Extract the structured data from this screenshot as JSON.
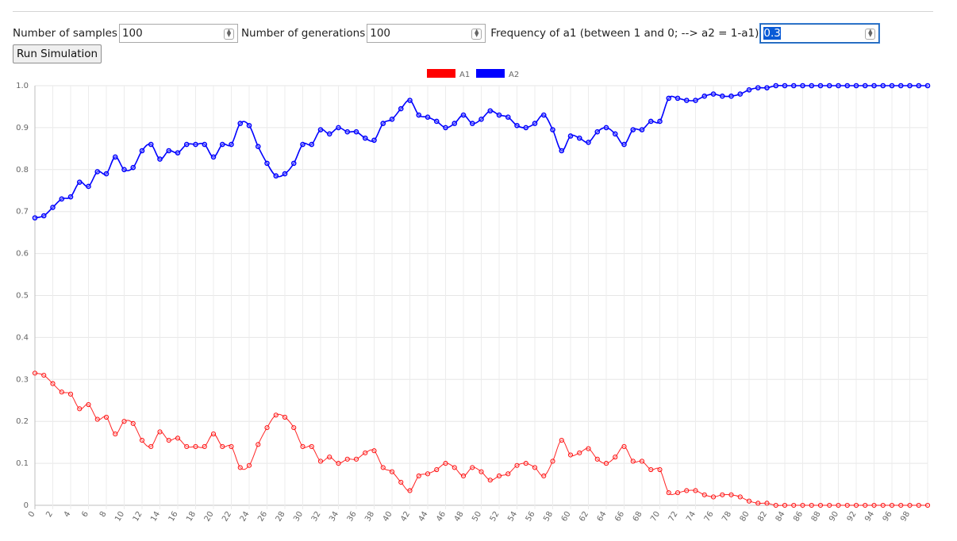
{
  "controls": {
    "samples_label": "Number of samples",
    "samples_value": "100",
    "generations_label": "Number of generations",
    "generations_value": "100",
    "freq_label": "Frequency of a1 (between 1 and 0; --> a2 = 1-a1)",
    "freq_value": "0.3",
    "run_label": "Run Simulation"
  },
  "chart_data": {
    "type": "line",
    "title": "",
    "xlabel": "",
    "ylabel": "",
    "ylim": [
      0,
      1
    ],
    "yticks": [
      "0",
      "0.1",
      "0.2",
      "0.3",
      "0.4",
      "0.5",
      "0.6",
      "0.7",
      "0.8",
      "0.9",
      "1.0"
    ],
    "grid": true,
    "legend_position": "top-center",
    "x": [
      0,
      1,
      2,
      3,
      4,
      5,
      6,
      7,
      8,
      9,
      10,
      11,
      12,
      13,
      14,
      15,
      16,
      17,
      18,
      19,
      20,
      21,
      22,
      23,
      24,
      25,
      26,
      27,
      28,
      29,
      30,
      31,
      32,
      33,
      34,
      35,
      36,
      37,
      38,
      39,
      40,
      41,
      42,
      43,
      44,
      45,
      46,
      47,
      48,
      49,
      50,
      51,
      52,
      53,
      54,
      55,
      56,
      57,
      58,
      59,
      60,
      61,
      62,
      63,
      64,
      65,
      66,
      67,
      68,
      69,
      70,
      71,
      72,
      73,
      74,
      75,
      76,
      77,
      78,
      79,
      80,
      81,
      82,
      83,
      84,
      85,
      86,
      87,
      88,
      89,
      90,
      91,
      92,
      93,
      94,
      95,
      96,
      97,
      98,
      99,
      100
    ],
    "series": [
      {
        "name": "A1",
        "color": "#ff0000",
        "values": [
          0.315,
          0.31,
          0.29,
          0.27,
          0.265,
          0.23,
          0.24,
          0.205,
          0.21,
          0.17,
          0.2,
          0.195,
          0.155,
          0.14,
          0.175,
          0.155,
          0.16,
          0.14,
          0.14,
          0.14,
          0.17,
          0.14,
          0.14,
          0.09,
          0.095,
          0.145,
          0.185,
          0.215,
          0.21,
          0.185,
          0.14,
          0.14,
          0.105,
          0.115,
          0.1,
          0.11,
          0.11,
          0.125,
          0.13,
          0.09,
          0.08,
          0.055,
          0.035,
          0.07,
          0.075,
          0.085,
          0.1,
          0.09,
          0.07,
          0.09,
          0.08,
          0.06,
          0.07,
          0.075,
          0.095,
          0.1,
          0.09,
          0.07,
          0.105,
          0.155,
          0.12,
          0.125,
          0.135,
          0.11,
          0.1,
          0.115,
          0.14,
          0.105,
          0.105,
          0.085,
          0.085,
          0.03,
          0.03,
          0.035,
          0.035,
          0.025,
          0.02,
          0.025,
          0.025,
          0.02,
          0.01,
          0.005,
          0.005,
          0,
          0,
          0,
          0,
          0,
          0,
          0,
          0,
          0,
          0,
          0,
          0,
          0,
          0,
          0,
          0,
          0,
          0
        ]
      },
      {
        "name": "A2",
        "color": "#0000ff",
        "values": [
          0.685,
          0.69,
          0.71,
          0.73,
          0.735,
          0.77,
          0.76,
          0.795,
          0.79,
          0.83,
          0.8,
          0.805,
          0.845,
          0.86,
          0.825,
          0.845,
          0.84,
          0.86,
          0.86,
          0.86,
          0.83,
          0.86,
          0.86,
          0.91,
          0.905,
          0.855,
          0.815,
          0.785,
          0.79,
          0.815,
          0.86,
          0.86,
          0.895,
          0.885,
          0.9,
          0.89,
          0.89,
          0.875,
          0.87,
          0.91,
          0.92,
          0.945,
          0.965,
          0.93,
          0.925,
          0.915,
          0.9,
          0.91,
          0.93,
          0.91,
          0.92,
          0.94,
          0.93,
          0.925,
          0.905,
          0.9,
          0.91,
          0.93,
          0.895,
          0.845,
          0.88,
          0.875,
          0.865,
          0.89,
          0.9,
          0.885,
          0.86,
          0.895,
          0.895,
          0.915,
          0.915,
          0.97,
          0.97,
          0.965,
          0.965,
          0.975,
          0.98,
          0.975,
          0.975,
          0.98,
          0.99,
          0.995,
          0.995,
          1,
          1,
          1,
          1,
          1,
          1,
          1,
          1,
          1,
          1,
          1,
          1,
          1,
          1,
          1,
          1,
          1,
          1
        ]
      }
    ]
  }
}
